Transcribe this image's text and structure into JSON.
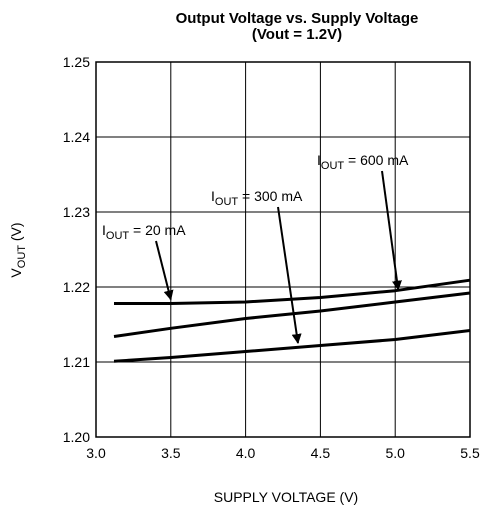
{
  "chart_data": {
    "type": "line",
    "title_line1": "Output Voltage vs. Supply Voltage",
    "title_line2": "(Vout = 1.2V)",
    "xlabel": "SUPPLY VOLTAGE (V)",
    "ylabel_main": "V",
    "ylabel_sub": "OUT",
    "ylabel_unit": " (V)",
    "xlim": [
      3.0,
      5.5
    ],
    "ylim": [
      1.2,
      1.25
    ],
    "grid": true,
    "x_ticks": [
      "3.0",
      "3.5",
      "4.0",
      "4.5",
      "5.0",
      "5.5"
    ],
    "y_ticks": [
      "1.20",
      "1.21",
      "1.22",
      "1.23",
      "1.24",
      "1.25"
    ],
    "series": [
      {
        "name": "IOUT = 20 mA",
        "x": [
          3.12,
          3.5,
          4.0,
          4.5,
          5.0,
          5.5
        ],
        "y": [
          1.2178,
          1.2178,
          1.218,
          1.2186,
          1.2195,
          1.2209
        ]
      },
      {
        "name": "IOUT = 300 mA",
        "x": [
          3.12,
          3.5,
          4.0,
          4.5,
          5.0,
          5.5
        ],
        "y": [
          1.2101,
          1.2106,
          1.2114,
          1.2122,
          1.213,
          1.2142
        ]
      },
      {
        "name": "IOUT = 600 mA",
        "x": [
          3.12,
          3.5,
          4.0,
          4.5,
          5.0,
          5.5
        ],
        "y": [
          1.2134,
          1.2145,
          1.2158,
          1.2168,
          1.218,
          1.2192
        ]
      }
    ],
    "annotations": [
      {
        "pre": "I",
        "sub": "OUT",
        "post": " = 20 mA",
        "arrow_to": [
          3.5,
          1.2178
        ]
      },
      {
        "pre": "I",
        "sub": "OUT",
        "post": " = 300 mA",
        "arrow_to": [
          4.35,
          1.212
        ]
      },
      {
        "pre": "I",
        "sub": "OUT",
        "post": " = 600 mA",
        "arrow_to": [
          5.02,
          1.2191
        ]
      }
    ]
  }
}
